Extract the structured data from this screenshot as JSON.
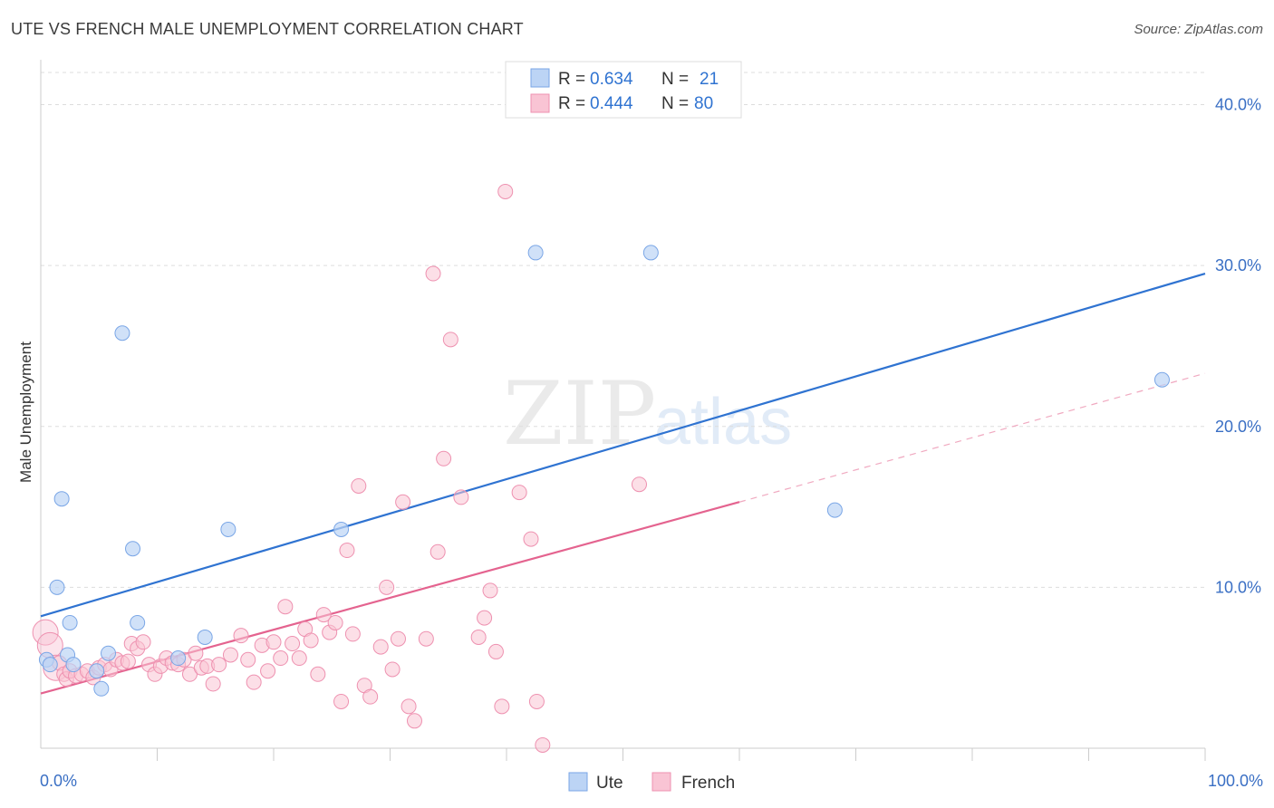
{
  "title": "UTE VS FRENCH MALE UNEMPLOYMENT CORRELATION CHART",
  "source": "Source: ZipAtlas.com",
  "watermark": {
    "zip": "ZIP",
    "atlas": "atlas"
  },
  "legend": {
    "rows": [
      {
        "r_label": "R = ",
        "r_value": "0.634",
        "n_label": "N = ",
        "n_value": "21"
      },
      {
        "r_label": "R = ",
        "r_value": "0.444",
        "n_label": "N = ",
        "n_value": "80"
      }
    ]
  },
  "bottom_legend": [
    "Ute",
    "French"
  ],
  "colors": {
    "ute_fill": "#bcd4f5",
    "ute_stroke": "#7aa6e6",
    "ute_line": "#2f73d1",
    "french_fill": "#f9c4d4",
    "french_stroke": "#ee91b0",
    "french_line": "#e4638f",
    "tick": "#3a6fc4",
    "grid": "#dddddd"
  },
  "chart_data": {
    "type": "scatter",
    "title": "UTE VS FRENCH MALE UNEMPLOYMENT CORRELATION CHART",
    "xlabel": "",
    "ylabel": "Male Unemployment",
    "xlim": [
      0,
      100
    ],
    "ylim": [
      0,
      42
    ],
    "x_ticks": [
      {
        "value": 0,
        "label": "0.0%"
      },
      {
        "value": 100,
        "label": "100.0%"
      }
    ],
    "y_ticks": [
      {
        "value": 10,
        "label": "10.0%"
      },
      {
        "value": 20,
        "label": "20.0%"
      },
      {
        "value": 30,
        "label": "30.0%"
      },
      {
        "value": 40,
        "label": "40.0%"
      }
    ],
    "grid": true,
    "legend_position": "top-center",
    "series": [
      {
        "name": "Ute",
        "r": 0.634,
        "n": 21,
        "trend": {
          "x0": 0,
          "y0": 8.2,
          "x1": 100,
          "y1": 29.5
        },
        "points": [
          [
            0.5,
            5.5
          ],
          [
            0.8,
            5.2
          ],
          [
            1.8,
            15.5
          ],
          [
            1.4,
            10.0
          ],
          [
            2.5,
            7.8
          ],
          [
            2.3,
            5.8
          ],
          [
            2.8,
            5.2
          ],
          [
            4.8,
            4.8
          ],
          [
            5.2,
            3.7
          ],
          [
            5.8,
            5.9
          ],
          [
            7.0,
            25.8
          ],
          [
            7.9,
            12.4
          ],
          [
            8.3,
            7.8
          ],
          [
            11.8,
            5.6
          ],
          [
            14.1,
            6.9
          ],
          [
            16.1,
            13.6
          ],
          [
            25.8,
            13.6
          ],
          [
            42.5,
            30.8
          ],
          [
            52.4,
            30.8
          ],
          [
            68.2,
            14.8
          ],
          [
            96.3,
            22.9
          ]
        ]
      },
      {
        "name": "French",
        "r": 0.444,
        "n": 80,
        "trend": {
          "x0": 0,
          "y0": 3.4,
          "x1": 60,
          "y1": 15.3
        },
        "trend_dashed": {
          "x0": 60,
          "y0": 15.3,
          "x1": 100,
          "y1": 23.3
        },
        "points": [
          [
            0.4,
            7.2
          ],
          [
            0.8,
            6.4
          ],
          [
            1.3,
            5.0
          ],
          [
            1.6,
            5.3
          ],
          [
            2.0,
            4.6
          ],
          [
            2.2,
            4.3
          ],
          [
            2.5,
            4.8
          ],
          [
            3.0,
            4.5
          ],
          [
            3.5,
            4.6
          ],
          [
            4.0,
            4.8
          ],
          [
            4.5,
            4.4
          ],
          [
            5.0,
            5.0
          ],
          [
            5.5,
            5.2
          ],
          [
            6.0,
            4.9
          ],
          [
            6.5,
            5.5
          ],
          [
            7.0,
            5.3
          ],
          [
            7.5,
            5.4
          ],
          [
            7.8,
            6.5
          ],
          [
            8.3,
            6.2
          ],
          [
            8.8,
            6.6
          ],
          [
            9.3,
            5.2
          ],
          [
            9.8,
            4.6
          ],
          [
            10.3,
            5.1
          ],
          [
            10.8,
            5.6
          ],
          [
            11.3,
            5.3
          ],
          [
            11.8,
            5.2
          ],
          [
            12.3,
            5.5
          ],
          [
            12.8,
            4.6
          ],
          [
            13.3,
            5.9
          ],
          [
            13.8,
            5.0
          ],
          [
            14.3,
            5.1
          ],
          [
            14.8,
            4.0
          ],
          [
            15.3,
            5.2
          ],
          [
            16.3,
            5.8
          ],
          [
            17.2,
            7.0
          ],
          [
            17.8,
            5.5
          ],
          [
            18.3,
            4.1
          ],
          [
            19.0,
            6.4
          ],
          [
            19.5,
            4.8
          ],
          [
            20.0,
            6.6
          ],
          [
            20.6,
            5.6
          ],
          [
            21.0,
            8.8
          ],
          [
            21.6,
            6.5
          ],
          [
            22.2,
            5.6
          ],
          [
            22.7,
            7.4
          ],
          [
            23.2,
            6.7
          ],
          [
            23.8,
            4.6
          ],
          [
            24.3,
            8.3
          ],
          [
            24.8,
            7.2
          ],
          [
            25.3,
            7.8
          ],
          [
            25.8,
            2.9
          ],
          [
            26.3,
            12.3
          ],
          [
            26.8,
            7.1
          ],
          [
            27.3,
            16.3
          ],
          [
            27.8,
            3.9
          ],
          [
            28.3,
            3.2
          ],
          [
            29.2,
            6.3
          ],
          [
            29.7,
            10.0
          ],
          [
            30.2,
            4.9
          ],
          [
            30.7,
            6.8
          ],
          [
            31.1,
            15.3
          ],
          [
            31.6,
            2.6
          ],
          [
            32.1,
            1.7
          ],
          [
            33.1,
            6.8
          ],
          [
            33.7,
            29.5
          ],
          [
            34.1,
            12.2
          ],
          [
            34.6,
            18.0
          ],
          [
            35.2,
            25.4
          ],
          [
            36.1,
            15.6
          ],
          [
            37.6,
            6.9
          ],
          [
            38.1,
            8.1
          ],
          [
            38.6,
            9.8
          ],
          [
            39.1,
            6.0
          ],
          [
            39.6,
            2.6
          ],
          [
            39.9,
            34.6
          ],
          [
            41.1,
            15.9
          ],
          [
            42.1,
            13.0
          ],
          [
            42.6,
            2.9
          ],
          [
            43.1,
            0.2
          ],
          [
            51.4,
            16.4
          ]
        ]
      }
    ]
  }
}
